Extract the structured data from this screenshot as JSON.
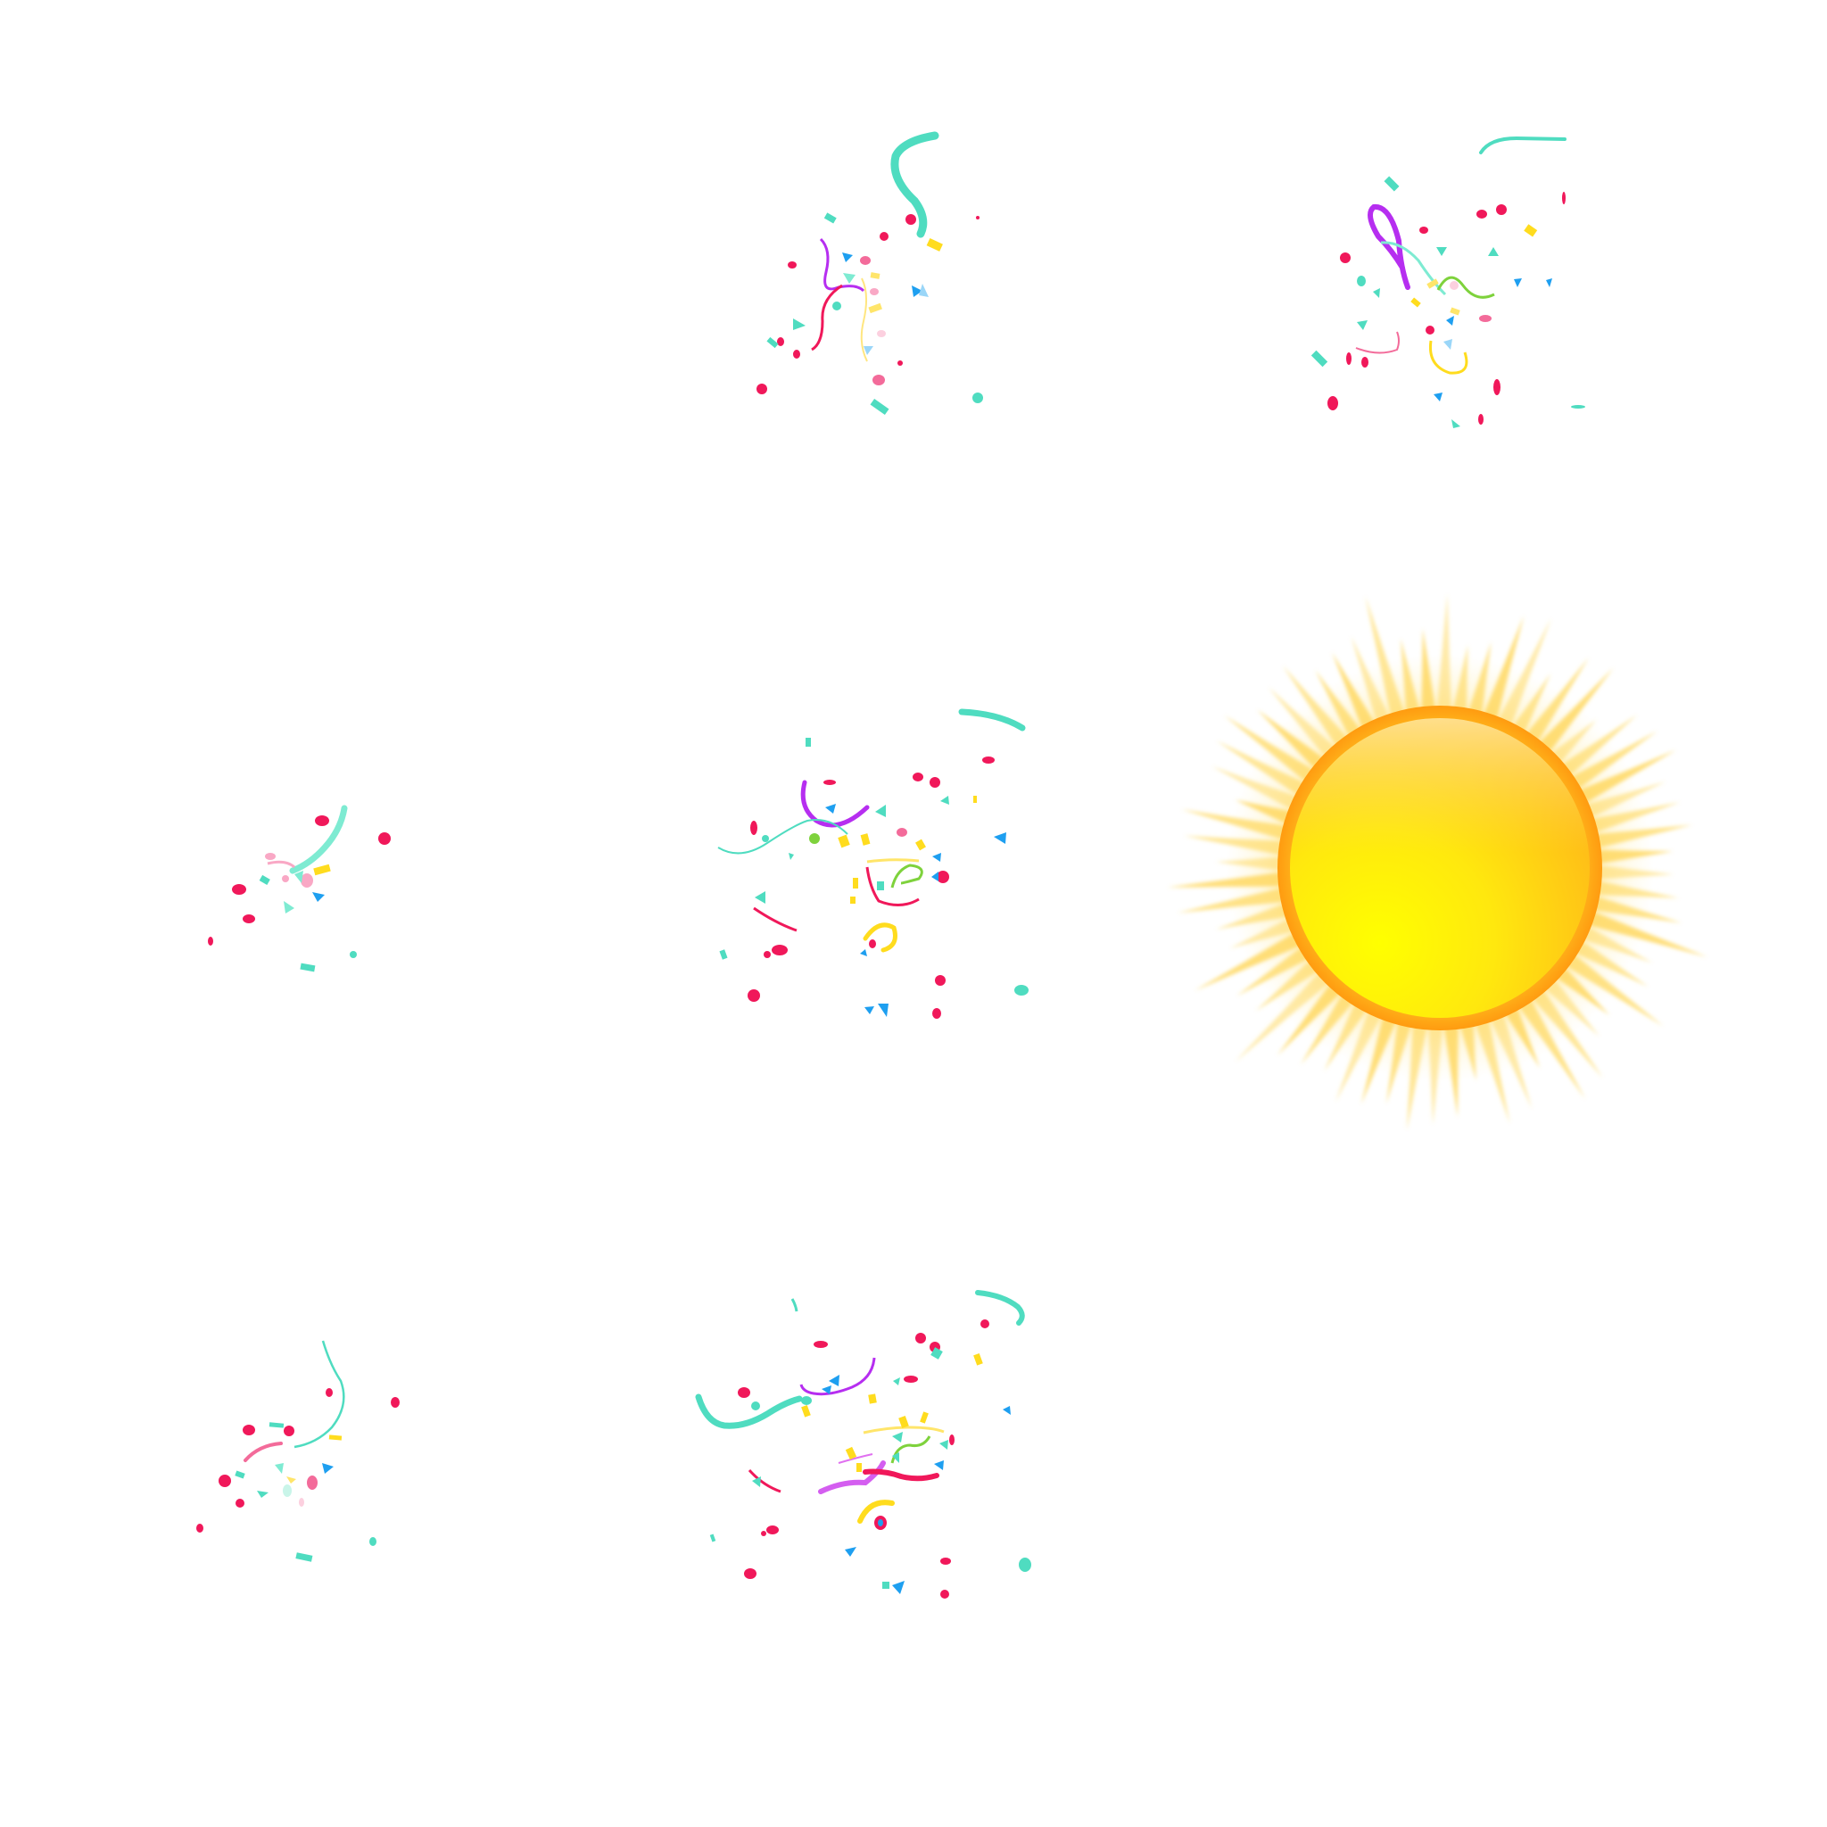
{
  "sheet": {
    "background": "#ffffff",
    "rows": 3,
    "columns": 3
  },
  "palette": {
    "teal": "#4fdcc0",
    "crimson": "#f0185a",
    "pink": "#f36b9a",
    "purple": "#b62ef0",
    "yellow": "#ffdc1e",
    "blue": "#1e9ff0",
    "green": "#7ed23c",
    "sun_core": "#ffee10",
    "sun_edge": "#ffa81a",
    "sun_ray": "#ffd860"
  },
  "frames": [
    {
      "id": "r1c1",
      "content": "empty"
    },
    {
      "id": "r1c2",
      "content": "confetti-burst",
      "stage": 2
    },
    {
      "id": "r1c3",
      "content": "confetti-burst",
      "stage": 3
    },
    {
      "id": "r2c1",
      "content": "confetti-burst",
      "stage": 1
    },
    {
      "id": "r2c2",
      "content": "confetti-burst",
      "stage": 4
    },
    {
      "id": "r2c3",
      "content": "sun-icon"
    },
    {
      "id": "r3c1",
      "content": "confetti-burst",
      "stage": 1
    },
    {
      "id": "r3c2",
      "content": "confetti-burst",
      "stage": 5
    },
    {
      "id": "r3c3",
      "content": "empty"
    }
  ]
}
